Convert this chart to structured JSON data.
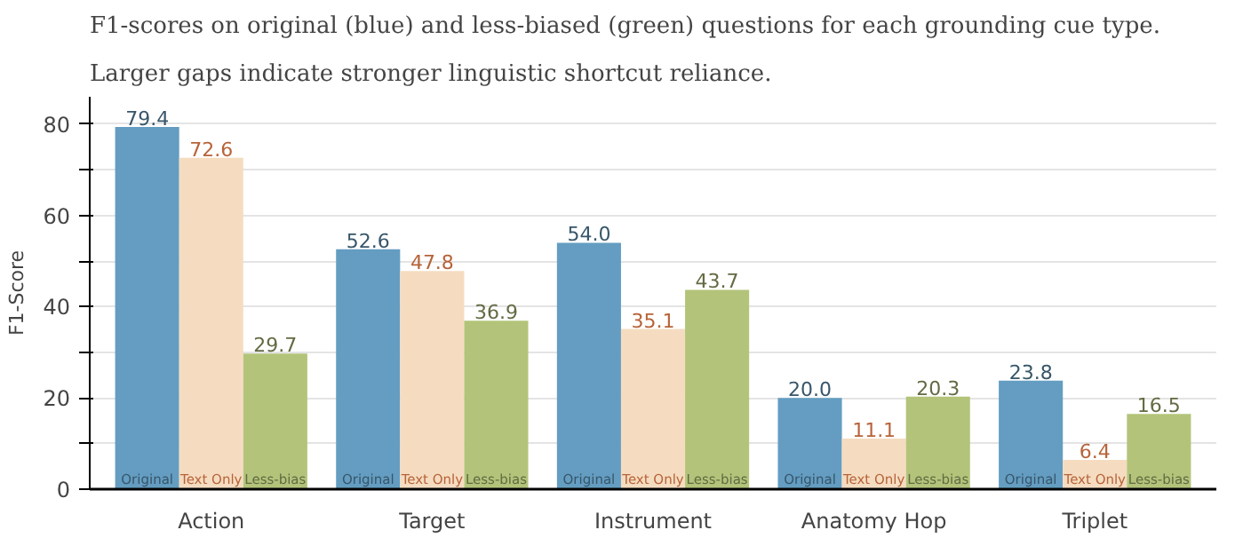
{
  "chart_data": {
    "type": "bar",
    "title": "F1-scores on original (blue) and less-biased (green) questions for each grounding cue type.",
    "subtitle": "Larger gaps indicate stronger linguistic shortcut reliance.",
    "ylabel": "F1-Score",
    "categories": [
      "Action",
      "Target",
      "Instrument",
      "Anatomy Hop",
      "Triplet"
    ],
    "series": [
      {
        "name": "Original",
        "color": "#649dc1",
        "values": [
          79.4,
          52.6,
          54.0,
          20.0,
          23.8
        ],
        "value_labels": [
          "79.4",
          "52.6",
          "54.0",
          "20.0",
          "23.8"
        ]
      },
      {
        "name": "Text Only",
        "color": "#f5dcc1",
        "values": [
          72.6,
          47.8,
          35.1,
          11.1,
          6.4
        ],
        "value_labels": [
          "72.6",
          "47.8",
          "35.1",
          "11.1",
          "6.4"
        ]
      },
      {
        "name": "Less-bias",
        "color": "#b3c47a",
        "values": [
          29.7,
          36.9,
          43.7,
          20.3,
          16.5
        ],
        "value_labels": [
          "29.7",
          "36.9",
          "43.7",
          "20.3",
          "16.5"
        ]
      }
    ],
    "ylim": [
      0,
      86
    ],
    "yticks": [
      0,
      {
        "value": 10,
        "label": null
      },
      20,
      {
        "value": 30,
        "label": null
      },
      40,
      {
        "value": 50,
        "label": null
      },
      60,
      {
        "value": 70,
        "label": null
      },
      80
    ],
    "grid": "y"
  }
}
